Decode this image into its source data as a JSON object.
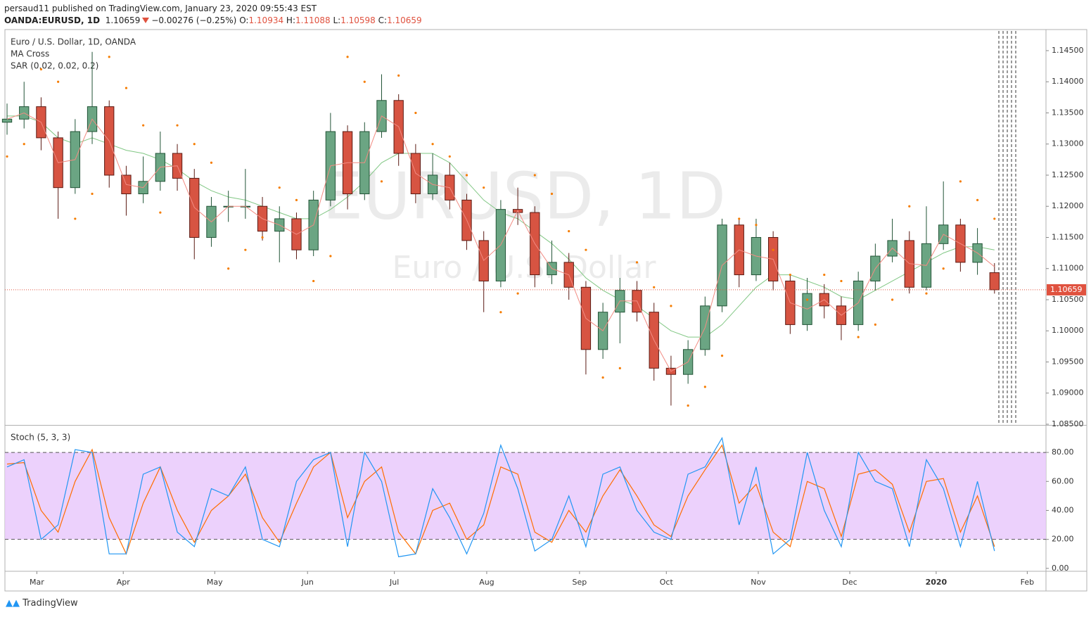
{
  "header": {
    "byline": "persaud11 published on TradingView.com, January 23, 2020 09:55:43 EST",
    "symbol": "OANDA:EURUSD, 1D",
    "change": "−0.00276 (−0.25%)",
    "ohlc_labels": [
      "O:",
      "H:",
      "L:",
      "C:"
    ]
  },
  "watermark": {
    "symbol": "EURUSD, 1D",
    "description": "Euro / U.S. Dollar"
  },
  "footer": {
    "brand": "TradingView"
  },
  "chart_data": [
    {
      "type": "candlestick",
      "legend": [
        "Euro / U.S. Dollar, 1D, OANDA",
        "MA Cross",
        "SAR (0.02, 0.02, 0.2)"
      ],
      "up_color": "#6ba583",
      "down_color": "#d75442",
      "up_border": "#225437",
      "down_border": "#5b1a13",
      "x": [
        0,
        4,
        8,
        12,
        16,
        20,
        24,
        28,
        32,
        36,
        40,
        44,
        48,
        52,
        56,
        60,
        64,
        68,
        72,
        76,
        80,
        84,
        88,
        92,
        96,
        100,
        104,
        108,
        112,
        116,
        120,
        124,
        128,
        132,
        136,
        140,
        144,
        148,
        152,
        156,
        160,
        164,
        168,
        172,
        176,
        180,
        184,
        188,
        192,
        196,
        200,
        204,
        208,
        212,
        216,
        220,
        224,
        228,
        232
      ],
      "open": [
        1.1335,
        1.134,
        1.136,
        1.131,
        1.123,
        1.132,
        1.136,
        1.125,
        1.122,
        1.124,
        1.1285,
        1.1245,
        1.115,
        1.12,
        1.12,
        1.12,
        1.116,
        1.118,
        1.113,
        1.121,
        1.132,
        1.122,
        1.132,
        1.137,
        1.1285,
        1.122,
        1.125,
        1.121,
        1.1145,
        1.108,
        1.1195,
        1.119,
        1.109,
        1.111,
        1.107,
        1.097,
        1.103,
        1.1065,
        1.103,
        1.094,
        1.093,
        1.097,
        1.104,
        1.117,
        1.109,
        1.115,
        1.108,
        1.101,
        1.106,
        1.104,
        1.101,
        1.108,
        1.112,
        1.1145,
        1.107,
        1.114,
        1.117,
        1.111,
        1.10934
      ],
      "high": [
        1.1365,
        1.14,
        1.1375,
        1.132,
        1.134,
        1.1448,
        1.137,
        1.1265,
        1.128,
        1.132,
        1.13,
        1.126,
        1.1215,
        1.1225,
        1.126,
        1.1215,
        1.12,
        1.119,
        1.1225,
        1.135,
        1.133,
        1.1335,
        1.1412,
        1.138,
        1.13,
        1.1285,
        1.127,
        1.122,
        1.116,
        1.121,
        1.123,
        1.12,
        1.1145,
        1.1125,
        1.108,
        1.1045,
        1.1085,
        1.108,
        1.1045,
        1.096,
        1.0985,
        1.1055,
        1.118,
        1.118,
        1.118,
        1.116,
        1.109,
        1.1085,
        1.1075,
        1.1055,
        1.1095,
        1.114,
        1.118,
        1.116,
        1.12,
        1.124,
        1.118,
        1.1165,
        1.11088
      ],
      "low": [
        1.1315,
        1.1325,
        1.129,
        1.118,
        1.122,
        1.13,
        1.123,
        1.1185,
        1.1205,
        1.1225,
        1.1225,
        1.1115,
        1.1135,
        1.1175,
        1.118,
        1.1145,
        1.111,
        1.1115,
        1.112,
        1.12,
        1.1195,
        1.121,
        1.131,
        1.1265,
        1.1205,
        1.121,
        1.1195,
        1.113,
        1.103,
        1.107,
        1.117,
        1.107,
        1.1075,
        1.105,
        1.093,
        1.0955,
        1.098,
        1.1015,
        1.092,
        1.088,
        1.0915,
        1.096,
        1.103,
        1.107,
        1.108,
        1.1065,
        1.0995,
        1.1,
        1.102,
        1.0985,
        1.1,
        1.1065,
        1.111,
        1.106,
        1.1065,
        1.113,
        1.1095,
        1.109,
        1.10598
      ],
      "close": [
        1.134,
        1.136,
        1.131,
        1.123,
        1.132,
        1.136,
        1.125,
        1.122,
        1.124,
        1.1285,
        1.1245,
        1.115,
        1.12,
        1.12,
        1.12,
        1.116,
        1.118,
        1.113,
        1.121,
        1.132,
        1.122,
        1.132,
        1.137,
        1.1285,
        1.122,
        1.125,
        1.121,
        1.1145,
        1.108,
        1.1195,
        1.119,
        1.109,
        1.111,
        1.107,
        1.097,
        1.103,
        1.1065,
        1.103,
        1.094,
        1.093,
        1.097,
        1.104,
        1.117,
        1.109,
        1.115,
        1.108,
        1.101,
        1.106,
        1.104,
        1.101,
        1.108,
        1.112,
        1.1145,
        1.107,
        1.114,
        1.117,
        1.111,
        1.114,
        1.10659
      ],
      "ma_fast": {
        "color": "#f28b82",
        "values": [
          1.134,
          1.135,
          1.1335,
          1.127,
          1.1275,
          1.134,
          1.1305,
          1.1235,
          1.123,
          1.1263,
          1.1265,
          1.1198,
          1.1175,
          1.12,
          1.12,
          1.118,
          1.117,
          1.1155,
          1.117,
          1.1265,
          1.127,
          1.127,
          1.1345,
          1.1328,
          1.1253,
          1.1235,
          1.123,
          1.1178,
          1.1113,
          1.1138,
          1.1193,
          1.114,
          1.11,
          1.109,
          1.102,
          1.1,
          1.1048,
          1.1048,
          1.0985,
          1.0935,
          1.095,
          1.1005,
          1.1105,
          1.113,
          1.112,
          1.1115,
          1.1045,
          1.1035,
          1.105,
          1.1025,
          1.1045,
          1.11,
          1.1133,
          1.1108,
          1.1105,
          1.1155,
          1.114,
          1.1125,
          1.1103
        ]
      },
      "ma_slow": {
        "color": "#81c784",
        "values": [
          1.1345,
          1.1345,
          1.1335,
          1.131,
          1.13,
          1.131,
          1.13,
          1.129,
          1.1285,
          1.1275,
          1.126,
          1.124,
          1.1225,
          1.1215,
          1.121,
          1.12,
          1.119,
          1.118,
          1.118,
          1.1195,
          1.1215,
          1.124,
          1.127,
          1.1285,
          1.1285,
          1.1285,
          1.127,
          1.124,
          1.121,
          1.119,
          1.118,
          1.116,
          1.114,
          1.1115,
          1.1085,
          1.1065,
          1.105,
          1.104,
          1.102,
          1.1,
          1.099,
          1.099,
          1.101,
          1.104,
          1.107,
          1.109,
          1.109,
          1.108,
          1.107,
          1.1055,
          1.105,
          1.1065,
          1.108,
          1.1095,
          1.111,
          1.1125,
          1.1135,
          1.1135,
          1.113
        ]
      },
      "sar": {
        "color": "#f57c00",
        "values": [
          1.128,
          1.13,
          1.142,
          1.14,
          1.118,
          1.122,
          1.144,
          1.139,
          1.133,
          1.119,
          1.133,
          1.13,
          1.127,
          1.11,
          1.113,
          1.115,
          1.123,
          1.121,
          1.108,
          1.112,
          1.144,
          1.14,
          1.124,
          1.141,
          1.135,
          1.13,
          1.128,
          1.125,
          1.123,
          1.103,
          1.106,
          1.125,
          1.122,
          1.116,
          1.113,
          1.0925,
          1.094,
          1.111,
          1.107,
          1.104,
          1.088,
          1.091,
          1.096,
          1.118,
          1.117,
          1.113,
          1.109,
          1.105,
          1.109,
          1.108,
          1.099,
          1.101,
          1.105,
          1.12,
          1.106,
          1.11,
          1.124,
          1.121,
          1.118
        ]
      },
      "last_color": "#e0523f",
      "xlim": [
        -0.5,
        244.1
      ],
      "ylim": [
        1.085,
        1.14816
      ],
      "yticks": [
        {
          "value": 1.085,
          "label": "1.08500"
        },
        {
          "value": 1.09,
          "label": "1.09000"
        },
        {
          "value": 1.095,
          "label": "1.09500"
        },
        {
          "value": 1.1,
          "label": "1.10000"
        },
        {
          "value": 1.105,
          "label": "1.10500"
        },
        {
          "value": 1.11,
          "label": "1.11000"
        },
        {
          "value": 1.115,
          "label": "1.11500"
        },
        {
          "value": 1.12,
          "label": "1.12000"
        },
        {
          "value": 1.125,
          "label": "1.12500"
        },
        {
          "value": 1.13,
          "label": "1.13000"
        },
        {
          "value": 1.135,
          "label": "1.13500"
        },
        {
          "value": 1.14,
          "label": "1.14000"
        },
        {
          "value": 1.145,
          "label": "1.14500"
        }
      ]
    },
    {
      "type": "line",
      "title": "Stoch (5, 3, 3)",
      "series": [
        {
          "color": "#2196f3",
          "values": [
            70,
            75,
            20,
            30,
            82,
            80,
            10,
            10,
            65,
            70,
            25,
            15,
            55,
            50,
            70,
            20,
            15,
            60,
            75,
            80,
            15,
            80,
            60,
            8,
            10,
            55,
            35,
            10,
            38,
            85,
            55,
            12,
            20,
            50,
            15,
            65,
            70,
            40,
            25,
            20,
            65,
            70,
            90,
            30,
            70,
            10,
            20,
            80,
            40,
            15,
            80,
            60,
            55,
            15,
            75,
            55,
            15,
            60,
            12
          ]
        },
        {
          "color": "#ff6d00",
          "values": [
            72,
            73,
            40,
            25,
            60,
            82,
            35,
            10,
            45,
            70,
            40,
            18,
            40,
            50,
            65,
            35,
            18,
            45,
            70,
            80,
            35,
            60,
            70,
            25,
            10,
            40,
            45,
            20,
            30,
            70,
            65,
            25,
            18,
            40,
            25,
            50,
            68,
            50,
            30,
            22,
            50,
            68,
            85,
            45,
            58,
            25,
            15,
            60,
            55,
            22,
            65,
            68,
            58,
            25,
            60,
            62,
            25,
            50,
            15
          ]
        }
      ],
      "band": {
        "from": 20,
        "to": 80,
        "color": "#e9c9fb"
      },
      "xlim": [
        -0.5,
        244.1
      ],
      "ylim": [
        -2,
        98
      ],
      "yticks": [
        {
          "value": 0,
          "label": "0.00"
        },
        {
          "value": 20,
          "label": "20.00"
        },
        {
          "value": 40,
          "label": "40.00"
        },
        {
          "value": 60,
          "label": "60.00"
        },
        {
          "value": 80,
          "label": "80.00"
        }
      ],
      "xticks": [
        {
          "value": 7,
          "label": "Mar"
        },
        {
          "value": 27.3,
          "label": "Apr"
        },
        {
          "value": 48.8,
          "label": "May"
        },
        {
          "value": 70.6,
          "label": "Jun"
        },
        {
          "value": 91,
          "label": "Jul"
        },
        {
          "value": 112.7,
          "label": "Aug"
        },
        {
          "value": 134.5,
          "label": "Sep"
        },
        {
          "value": 154.9,
          "label": "Oct"
        },
        {
          "value": 176.5,
          "label": "Nov"
        },
        {
          "value": 198,
          "label": "Dec"
        },
        {
          "value": 218.3,
          "label": "2020"
        },
        {
          "value": 239.7,
          "label": "Feb"
        }
      ]
    }
  ]
}
